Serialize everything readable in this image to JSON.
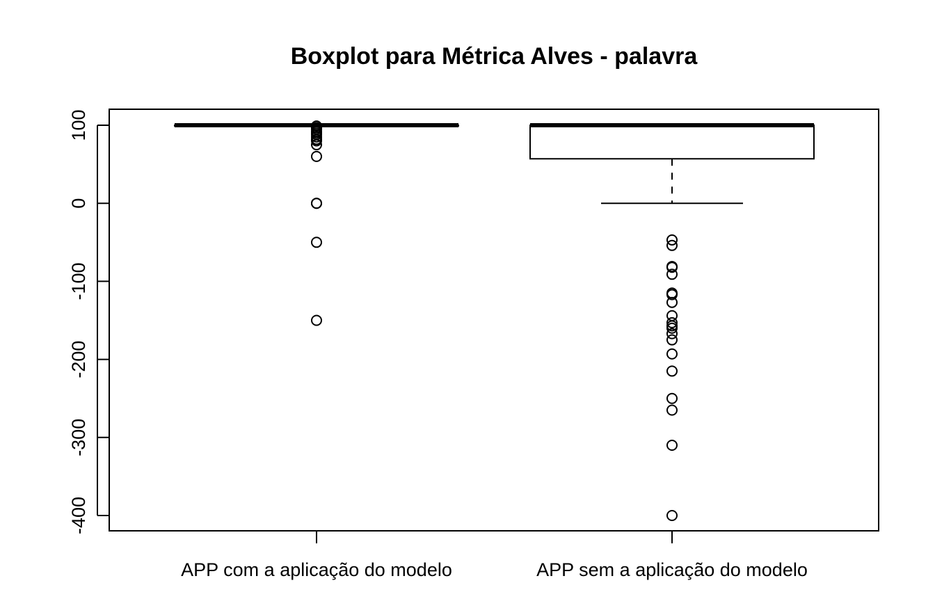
{
  "chart_data": {
    "type": "boxplot",
    "title": "Boxplot para Métrica Alves - palavra",
    "xlabel": "",
    "ylabel": "",
    "ylim": [
      -420,
      120
    ],
    "yticks": [
      100,
      0,
      -100,
      -200,
      -300,
      -400
    ],
    "categories": [
      "APP com a aplicação do modelo",
      "APP sem a aplicação do modelo"
    ],
    "boxes": [
      {
        "category": "APP com a aplicação do modelo",
        "min": 100,
        "q1": 100,
        "median": 100,
        "q3": 100,
        "max": 100,
        "outliers": [
          99,
          97,
          95,
          92,
          90,
          88,
          85,
          82,
          80,
          75,
          60,
          0,
          0,
          -50,
          -150
        ]
      },
      {
        "category": "APP sem a aplicação do modelo",
        "min": 0,
        "q1": 57,
        "median": 100,
        "q3": 100,
        "max": 100,
        "outliers": [
          -47,
          -54,
          -81,
          -82,
          -91,
          -115,
          -117,
          -127,
          -144,
          -153,
          -157,
          -160,
          -167,
          -175,
          -193,
          -215,
          -250,
          -265,
          -310,
          -400
        ]
      }
    ],
    "grid": false,
    "legend": "none"
  }
}
